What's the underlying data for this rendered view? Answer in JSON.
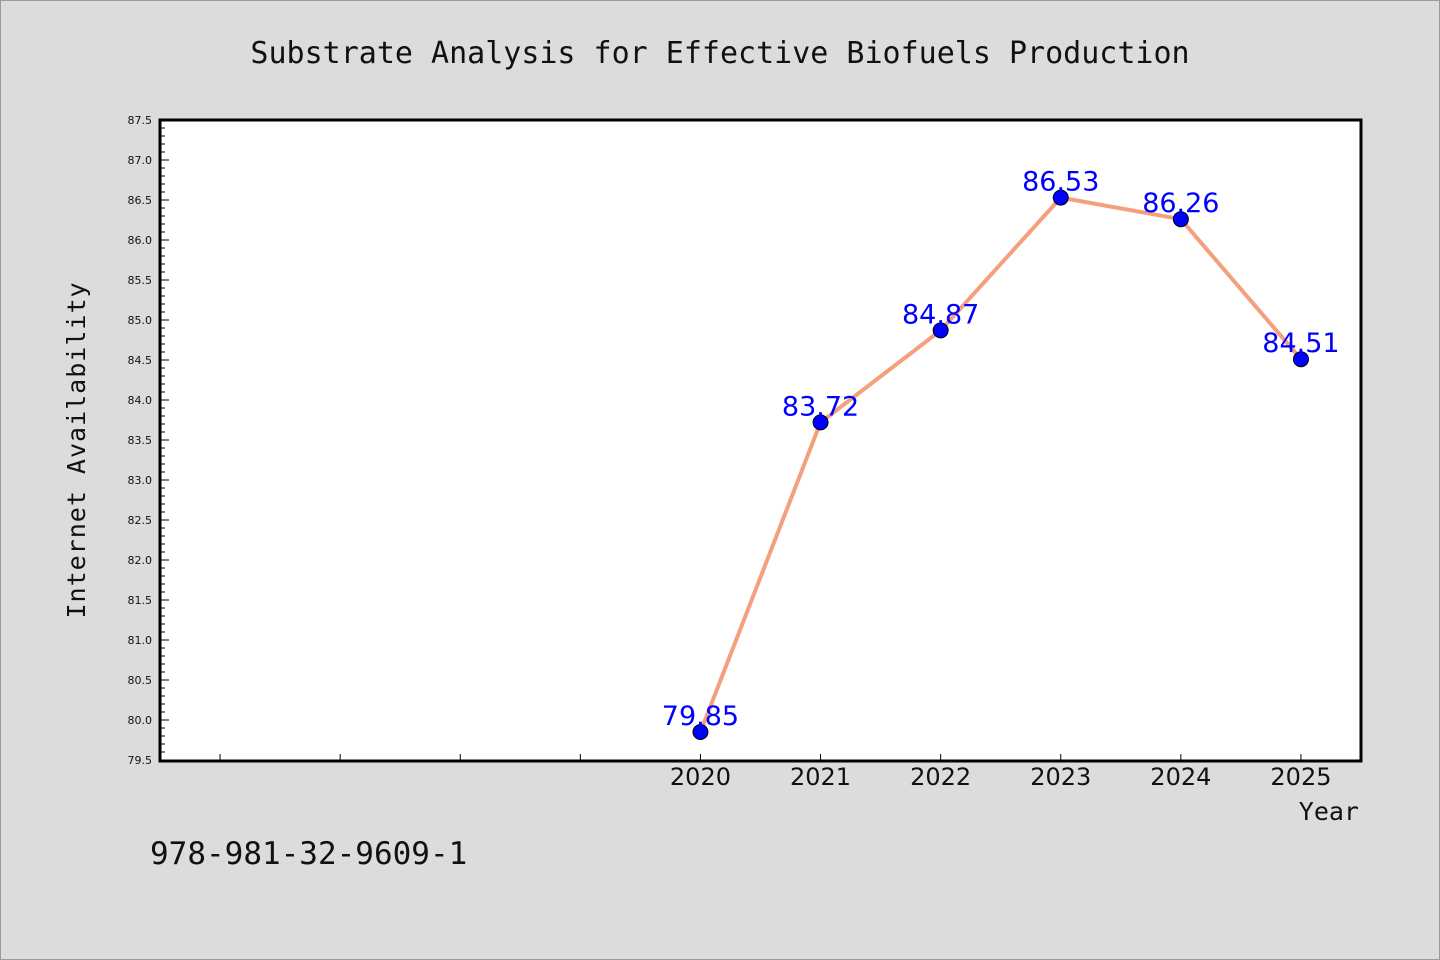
{
  "chart_data": {
    "type": "line",
    "title": "Substrate Analysis for Effective Biofuels Production",
    "xlabel": "Year",
    "ylabel": "Internet Availability",
    "x": [
      2020,
      2021,
      2022,
      2023,
      2024,
      2025
    ],
    "tick_labels": [
      "2020",
      "2021",
      "2022",
      "2023",
      "2024",
      "2025"
    ],
    "xlim": [
      2015.5,
      2025.5
    ],
    "ylim": [
      79.5,
      87.5
    ],
    "yticks": [
      "79.5",
      "80.0",
      "80.5",
      "81.0",
      "81.5",
      "82.0",
      "82.5",
      "83.0",
      "83.5",
      "84.0",
      "84.5",
      "85.0",
      "85.5",
      "86.0",
      "86.5",
      "87.0",
      "87.5"
    ],
    "series": [
      {
        "values": [
          79.85,
          83.72,
          84.87,
          86.53,
          86.26,
          84.51
        ],
        "data_labels": [
          "79.85",
          "83.72",
          "84.87",
          "86.53",
          "86.26",
          "84.51"
        ],
        "line_color": "#f4a07e",
        "marker_color": "#0000ff"
      }
    ],
    "grid": false,
    "legend": "none"
  },
  "footer": {
    "isbn": "978-981-32-9609-1"
  },
  "colors": {
    "background": "#dcdcdc",
    "plot_background": "#ffffff",
    "data_label": "#0000ff"
  }
}
